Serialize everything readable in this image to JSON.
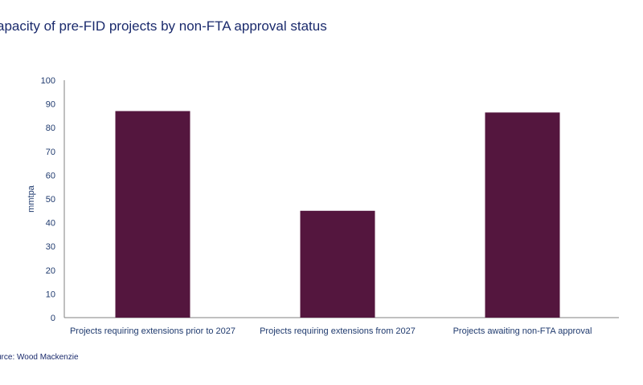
{
  "title": "apacity of pre-FID projects by non-FTA approval status",
  "source": "urce: Wood Mackenzie",
  "chart_data": {
    "type": "bar",
    "title": "apacity of pre-FID projects by non-FTA approval status",
    "categories": [
      "Projects requiring extensions prior to 2027",
      "Projects requiring extensions from 2027",
      "Projects awaiting non-FTA approval"
    ],
    "values": [
      87,
      45,
      86.4
    ],
    "xlabel": "",
    "ylabel": "mmtpa",
    "ylim": [
      0,
      100
    ],
    "yticks": [
      0,
      10,
      20,
      30,
      40,
      50,
      60,
      70,
      80,
      90,
      100
    ],
    "grid": false,
    "legend": "none",
    "bar_color": "#54163e"
  }
}
